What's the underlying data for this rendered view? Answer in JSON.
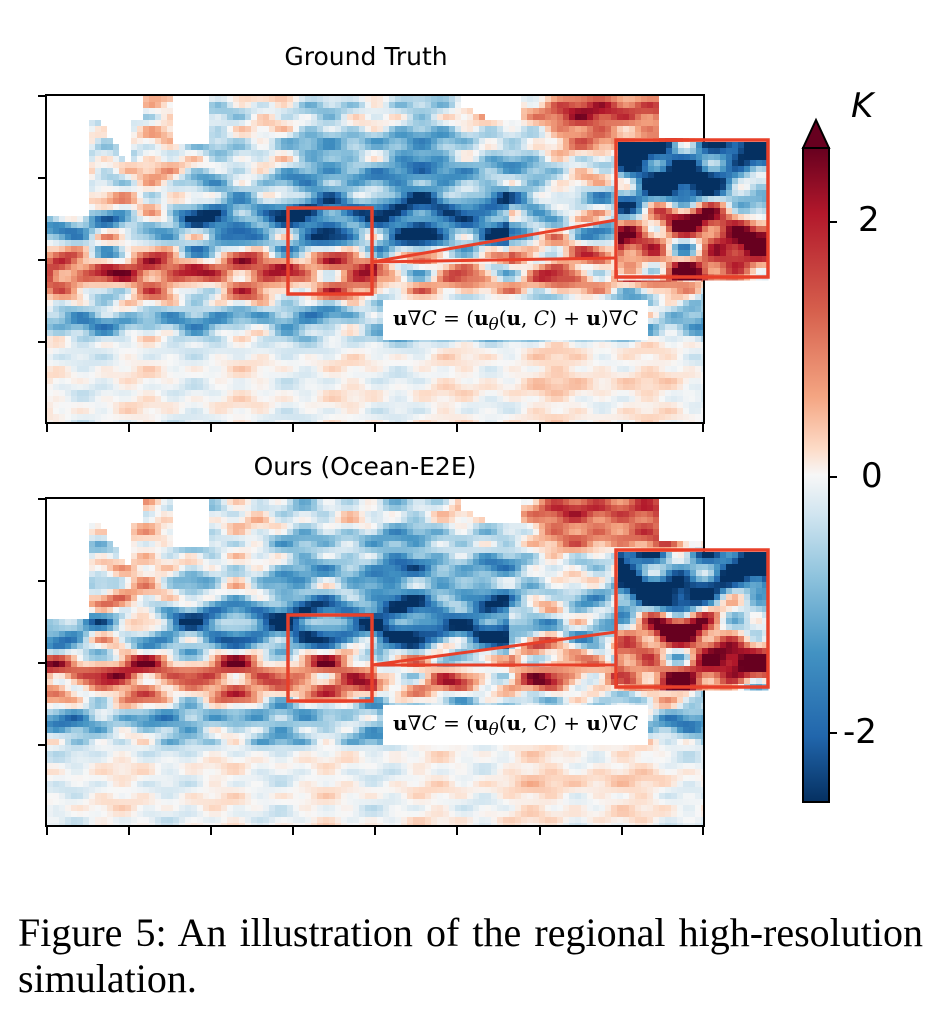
{
  "chart_data": {
    "type": "heatmap",
    "panels": [
      {
        "title": "Ground Truth",
        "equation": "u∇C = (uθ(u, C) + u)∇C"
      },
      {
        "title": "Ours (Ocean-E2E)",
        "equation": "u∇C = (uθ(u, C) + u)∇C"
      }
    ],
    "colorbar": {
      "title": "K",
      "ticks": [
        "2",
        "0",
        "-2"
      ],
      "range": [
        -2.5,
        2.5
      ],
      "colormap": "RdBu_r",
      "extend": "max"
    }
  },
  "caption": "Figure 5:  An illustration of the regional high-resolution simulation.",
  "colors": {
    "zoom_box": "#e8402a",
    "land": "#ffffff"
  }
}
